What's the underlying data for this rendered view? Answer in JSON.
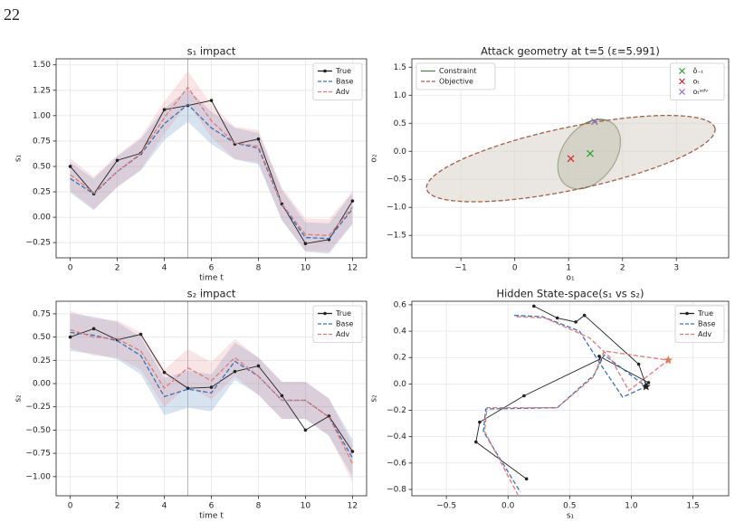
{
  "page_label": "22",
  "chart_data": [
    {
      "type": "line",
      "title": "s₁ impact",
      "xlabel": "time t",
      "ylabel": "s₁",
      "x": [
        0,
        1,
        2,
        3,
        4,
        5,
        6,
        7,
        8,
        9,
        10,
        11,
        12
      ],
      "xlim": [
        -0.6,
        12.6
      ],
      "xticks": [
        0,
        2,
        4,
        6,
        8,
        10,
        12
      ],
      "ylim": [
        -0.4,
        1.56
      ],
      "yticks": [
        {
          "value": -0.25,
          "label": "−0.25"
        },
        {
          "value": 0,
          "label": "0.00"
        },
        0.25,
        {
          "value": 0.5,
          "label": "0.50"
        },
        0.75,
        {
          "value": 1,
          "label": "1.00"
        },
        1.25,
        {
          "value": 1.5,
          "label": "1.50"
        }
      ],
      "grid": true,
      "legend": "upper right",
      "vline": 5,
      "vline_color": "#8fb8d8",
      "series": [
        {
          "name": "True",
          "color": "#222222",
          "style": "solid",
          "marker": true,
          "values": [
            0.5,
            0.23,
            0.56,
            0.63,
            1.06,
            1.1,
            1.15,
            0.72,
            0.77,
            0.13,
            -0.26,
            -0.22,
            0.16
          ]
        },
        {
          "name": "Base",
          "color": "#3b73b5",
          "style": "dashed",
          "values": [
            0.38,
            0.23,
            0.45,
            0.62,
            0.92,
            1.11,
            0.88,
            0.73,
            0.68,
            0.12,
            -0.2,
            -0.21,
            0.08
          ],
          "band_low": [
            0.24,
            0.07,
            0.3,
            0.46,
            0.76,
            0.94,
            0.72,
            0.57,
            0.52,
            -0.03,
            -0.34,
            -0.36,
            -0.07
          ],
          "band_high": [
            0.54,
            0.38,
            0.6,
            0.77,
            1.07,
            1.26,
            1.04,
            0.88,
            0.83,
            0.27,
            -0.05,
            -0.06,
            0.24
          ]
        },
        {
          "name": "Adv",
          "color": "#e07b7b",
          "style": "dashed",
          "values": [
            0.42,
            0.24,
            0.45,
            0.63,
            0.98,
            1.28,
            0.95,
            0.73,
            0.7,
            0.13,
            -0.17,
            -0.18,
            0.1
          ],
          "band_low": [
            0.26,
            0.08,
            0.29,
            0.47,
            0.82,
            1.12,
            0.79,
            0.57,
            0.54,
            -0.03,
            -0.33,
            -0.34,
            -0.06
          ],
          "band_high": [
            0.58,
            0.4,
            0.61,
            0.79,
            1.14,
            1.44,
            1.11,
            0.89,
            0.86,
            0.29,
            -0.01,
            -0.02,
            0.26
          ]
        }
      ]
    },
    {
      "type": "scatter",
      "title": "Attack geometry at t=5 (ε=5.991)",
      "xlabel": "o₁",
      "ylabel": "o₂",
      "xlim": [
        -1.91,
        3.97
      ],
      "xticks": [
        {
          "value": -1,
          "label": "−1"
        },
        0,
        1,
        2,
        3
      ],
      "ylim": [
        -1.9,
        1.65
      ],
      "yticks": [
        {
          "value": -1.5,
          "label": "−1.5"
        },
        {
          "value": -1,
          "label": "−1.0"
        },
        {
          "value": -0.5,
          "label": "−0.5"
        },
        {
          "value": 0,
          "label": "0.0"
        },
        0.5,
        {
          "value": 1,
          "label": "1.0"
        },
        1.5
      ],
      "grid": true,
      "legend": "upper right",
      "ellipse_legend": "upper left",
      "ellipses": [
        {
          "name": "Constraint",
          "color": "#5f7f50",
          "fill": "#a9b49a",
          "style": "solid",
          "cx": 1.38,
          "cy": -0.05,
          "a": 0.7,
          "b": 0.48,
          "angle": 50
        },
        {
          "name": "Objective",
          "color": "#a0624a",
          "fill": "#d9d1c9",
          "style": "dashed",
          "cx": 1.04,
          "cy": -0.13,
          "a": 2.73,
          "b": 0.56,
          "angle": 11.4
        }
      ],
      "points": [
        {
          "name": "ô₋ₜ",
          "color": "#2ca02c",
          "x": 1.4,
          "y": -0.04
        },
        {
          "name": "oₜ",
          "color": "#d62728",
          "x": 1.04,
          "y": -0.13
        },
        {
          "name": "oₜᵃᵈᵛ",
          "color": "#9467bd",
          "x": 1.48,
          "y": 0.53
        }
      ]
    },
    {
      "type": "line",
      "title": "s₂ impact",
      "xlabel": "time t",
      "ylabel": "s₂",
      "x": [
        0,
        1,
        2,
        3,
        4,
        5,
        6,
        7,
        8,
        9,
        10,
        11,
        12
      ],
      "xlim": [
        -0.6,
        12.6
      ],
      "xticks": [
        0,
        2,
        4,
        6,
        8,
        10,
        12
      ],
      "ylim": [
        -1.206,
        0.885
      ],
      "yticks": [
        {
          "value": -1,
          "label": "−1.00"
        },
        {
          "value": -0.75,
          "label": "−0.75"
        },
        {
          "value": -0.5,
          "label": "−0.50"
        },
        {
          "value": -0.25,
          "label": "−0.25"
        },
        {
          "value": 0,
          "label": "0.00"
        },
        0.25,
        {
          "value": 0.5,
          "label": "0.50"
        },
        0.75
      ],
      "grid": true,
      "legend": "upper right",
      "vline": 5,
      "vline_color": "#8fb8d8",
      "series": [
        {
          "name": "True",
          "color": "#222222",
          "style": "solid",
          "marker": true,
          "values": [
            0.5,
            0.59,
            0.47,
            0.53,
            0.12,
            -0.05,
            -0.04,
            0.13,
            0.19,
            -0.13,
            -0.5,
            -0.35,
            -0.73
          ]
        },
        {
          "name": "Base",
          "color": "#3b73b5",
          "style": "dashed",
          "values": [
            0.55,
            0.52,
            0.46,
            0.3,
            -0.14,
            -0.06,
            -0.1,
            0.24,
            0.08,
            -0.18,
            -0.18,
            -0.36,
            -0.8
          ],
          "band_low": [
            0.35,
            0.32,
            0.26,
            0.1,
            -0.34,
            -0.26,
            -0.3,
            0.04,
            -0.12,
            -0.38,
            -0.38,
            -0.56,
            -1.0
          ],
          "band_high": [
            0.75,
            0.72,
            0.66,
            0.5,
            0.06,
            0.14,
            0.1,
            0.44,
            0.28,
            0.02,
            0.02,
            -0.16,
            -0.6
          ]
        },
        {
          "name": "Adv",
          "color": "#e07b7b",
          "style": "dashed",
          "values": [
            0.58,
            0.5,
            0.48,
            0.35,
            -0.05,
            0.17,
            0.03,
            0.28,
            0.08,
            -0.18,
            -0.18,
            -0.36,
            -0.86
          ],
          "band_low": [
            0.38,
            0.3,
            0.28,
            0.15,
            -0.25,
            -0.03,
            -0.17,
            0.08,
            -0.12,
            -0.38,
            -0.38,
            -0.56,
            -1.06
          ],
          "band_high": [
            0.78,
            0.7,
            0.68,
            0.55,
            0.15,
            0.37,
            0.23,
            0.48,
            0.28,
            0.02,
            0.02,
            -0.16,
            -0.66
          ]
        }
      ]
    },
    {
      "type": "line",
      "title": "Hidden State-space(s₁ vs s₂)",
      "xlabel": "s₁",
      "ylabel": "s₂",
      "xlim": [
        -0.78,
        1.79
      ],
      "xticks": [
        {
          "value": -0.5,
          "label": "−0.5"
        },
        {
          "value": 0,
          "label": "0.0"
        },
        0.5,
        {
          "value": 1,
          "label": "1.0"
        },
        1.5
      ],
      "ylim": [
        -0.848,
        0.627
      ],
      "yticks": [
        {
          "value": -0.8,
          "label": "−0.8"
        },
        {
          "value": -0.6,
          "label": "−0.6"
        },
        {
          "value": -0.4,
          "label": "−0.4"
        },
        {
          "value": -0.2,
          "label": "−0.2"
        },
        {
          "value": 0,
          "label": "0.0"
        },
        0.2,
        0.4,
        0.6
      ],
      "grid": true,
      "legend": "upper right",
      "series": [
        {
          "name": "True",
          "color": "#222222",
          "style": "solid",
          "marker": true,
          "x": [
            0.21,
            0.4,
            0.55,
            0.62,
            1.06,
            1.12,
            1.14,
            0.74,
            0.75,
            0.13,
            -0.23,
            -0.26,
            0.15
          ],
          "values": [
            0.59,
            0.5,
            0.47,
            0.52,
            0.15,
            -0.01,
            0.01,
            0.21,
            0.19,
            -0.09,
            -0.29,
            -0.44,
            -0.72
          ]
        },
        {
          "name": "Base",
          "color": "#3b73b5",
          "style": "dashed",
          "x": [
            0.05,
            0.28,
            0.58,
            0.75,
            0.93,
            1.12,
            0.78,
            0.7,
            0.4,
            -0.18,
            -0.2,
            0.1
          ],
          "values": [
            0.52,
            0.51,
            0.4,
            0.15,
            -0.1,
            -0.02,
            0.22,
            0.07,
            -0.18,
            -0.19,
            -0.36,
            -0.82
          ]
        },
        {
          "name": "Adv",
          "color": "#e07b7b",
          "style": "dashed",
          "x": [
            0.07,
            0.3,
            0.66,
            0.83,
            0.98,
            1.3,
            0.78,
            0.69,
            0.4,
            -0.17,
            -0.19,
            0.08
          ],
          "values": [
            0.51,
            0.5,
            0.35,
            0.2,
            -0.05,
            0.18,
            0.25,
            0.05,
            -0.18,
            -0.18,
            -0.36,
            -0.84
          ]
        }
      ],
      "highlight_points": [
        {
          "x": 1.12,
          "y": -0.02,
          "color": "#222222"
        },
        {
          "x": 1.3,
          "y": 0.18,
          "color": "#e07b54"
        }
      ]
    }
  ]
}
